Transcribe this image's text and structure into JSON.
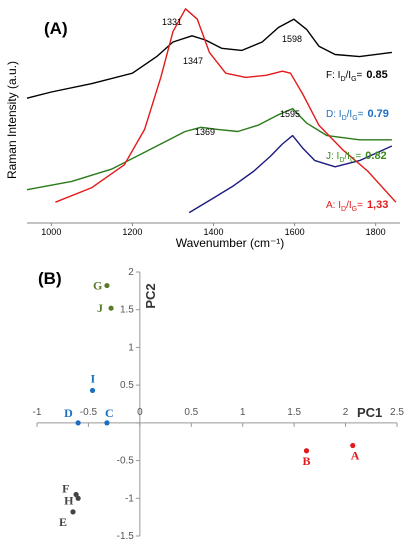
{
  "chart_data": [
    {
      "type": "line",
      "panel_label": "(A)",
      "xlabel": "Wavenumber (cm⁻¹)",
      "ylabel": "Raman Intensity (a.u.)",
      "xlim": [
        940,
        1860
      ],
      "x_ticks": [
        "1000",
        "1200",
        "1400",
        "1600",
        "1800"
      ],
      "series": [
        {
          "id": "F",
          "color": "#000000",
          "x": [
            940,
            1000,
            1100,
            1200,
            1260,
            1300,
            1347,
            1380,
            1420,
            1470,
            1520,
            1560,
            1598,
            1630,
            1660,
            1700,
            1760,
            1840
          ],
          "y": [
            0.6,
            0.63,
            0.67,
            0.72,
            0.8,
            0.87,
            0.9,
            0.88,
            0.84,
            0.83,
            0.87,
            0.94,
            0.98,
            0.93,
            0.85,
            0.81,
            0.8,
            0.82
          ]
        },
        {
          "id": "D",
          "color": "#1c1c80",
          "x": [
            1340,
            1400,
            1450,
            1500,
            1540,
            1570,
            1595,
            1620,
            1650,
            1700,
            1760,
            1840
          ],
          "y": [
            0.05,
            0.12,
            0.18,
            0.25,
            0.32,
            0.38,
            0.42,
            0.36,
            0.3,
            0.27,
            0.3,
            0.37
          ]
        },
        {
          "id": "J",
          "color": "#2a7a1a",
          "x": [
            940,
            1050,
            1150,
            1250,
            1330,
            1369,
            1410,
            1460,
            1510,
            1560,
            1595,
            1630,
            1680,
            1760,
            1840
          ],
          "y": [
            0.16,
            0.2,
            0.26,
            0.36,
            0.44,
            0.46,
            0.45,
            0.44,
            0.47,
            0.52,
            0.55,
            0.48,
            0.42,
            0.4,
            0.4
          ]
        },
        {
          "id": "A",
          "color": "#e31a1a",
          "x": [
            1010,
            1100,
            1180,
            1230,
            1270,
            1300,
            1331,
            1360,
            1390,
            1430,
            1480,
            1530,
            1570,
            1590,
            1620,
            1660,
            1720,
            1780,
            1850
          ],
          "y": [
            0.1,
            0.17,
            0.28,
            0.45,
            0.7,
            0.92,
            1.03,
            0.98,
            0.82,
            0.72,
            0.7,
            0.71,
            0.73,
            0.72,
            0.62,
            0.47,
            0.35,
            0.25,
            0.1
          ]
        }
      ],
      "peak_labels": [
        "1331",
        "1598",
        "1347",
        "1369",
        "1595"
      ],
      "ratio_labels": [
        {
          "prefix": "F: I",
          "sub1": "D",
          "mid": "/I",
          "sub2": "G",
          "suffix": "=",
          "value": "0.85",
          "color": "#000000"
        },
        {
          "prefix": "D: I",
          "sub1": "D",
          "mid": "/I",
          "sub2": "G",
          "suffix": "=",
          "value": "0.79",
          "color": "#1a6fbf"
        },
        {
          "prefix": "J: I",
          "sub1": "D",
          "mid": "/I",
          "sub2": "G",
          "suffix": "=",
          "value": "0.82",
          "color": "#3a8a1a"
        },
        {
          "prefix": "A: I",
          "sub1": "D",
          "mid": "/I",
          "sub2": "G",
          "suffix": "=",
          "value": "1,33",
          "color": "#e31a1a"
        }
      ]
    },
    {
      "type": "scatter",
      "panel_label": "(B)",
      "xlabel": "PC1",
      "ylabel": "PC2",
      "xlim": [
        -1,
        2.5
      ],
      "ylim": [
        -1.5,
        2
      ],
      "x_ticks": [
        "-1",
        "-0.5",
        "0",
        "0.5",
        "1",
        "1.5",
        "2",
        "2.5"
      ],
      "y_ticks": [
        "2",
        "1.5",
        "1",
        "0.5",
        "0",
        "-0.5",
        "-1",
        "-1.5"
      ],
      "points": [
        {
          "label": "G",
          "x": -0.32,
          "y": 1.82,
          "color": "#5a7a2a"
        },
        {
          "label": "J",
          "x": -0.28,
          "y": 1.52,
          "color": "#5a7a2a"
        },
        {
          "label": "I",
          "x": -0.46,
          "y": 0.43,
          "color": "#1a6fbf"
        },
        {
          "label": "D",
          "x": -0.6,
          "y": 0.0,
          "color": "#1a6fbf"
        },
        {
          "label": "C",
          "x": -0.32,
          "y": 0.0,
          "color": "#1a6fbf"
        },
        {
          "label": "B",
          "x": 1.62,
          "y": -0.37,
          "color": "#e31a1a"
        },
        {
          "label": "A",
          "x": 2.07,
          "y": -0.3,
          "color": "#e31a1a"
        },
        {
          "label": "F",
          "x": -0.62,
          "y": -0.95,
          "color": "#444444"
        },
        {
          "label": "H",
          "x": -0.6,
          "y": -1.0,
          "color": "#444444"
        },
        {
          "label": "E",
          "x": -0.65,
          "y": -1.18,
          "color": "#444444"
        }
      ]
    }
  ]
}
